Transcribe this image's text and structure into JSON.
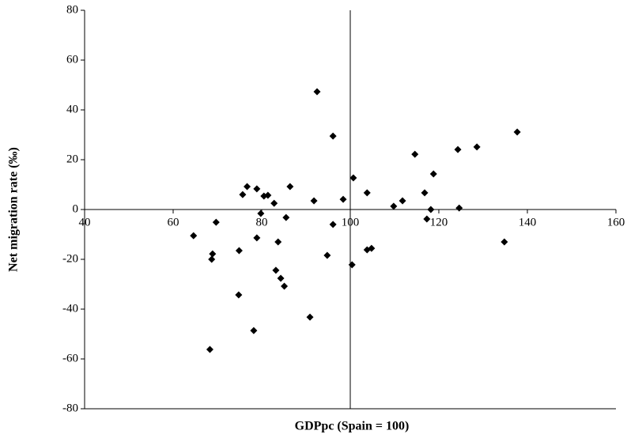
{
  "chart_data": {
    "type": "scatter",
    "x_label": "GDPpc (Spain = 100)",
    "y_label": "Net migration rate (‰)",
    "xlim": [
      40,
      160
    ],
    "xticks": [
      40,
      60,
      80,
      100,
      120,
      140,
      160
    ],
    "ylim": [
      -80,
      80
    ],
    "yticks": [
      -80,
      -60,
      -40,
      -20,
      0,
      20,
      40,
      60,
      80
    ],
    "color": "#000000",
    "x": [
      64.6,
      69.7,
      68.9,
      68.7,
      68.3,
      74.9,
      74.8,
      75.7,
      76.7,
      78.9,
      78.2,
      78.9,
      79.8,
      80.5,
      81.4,
      82.8,
      83.2,
      83.7,
      84.3,
      85.1,
      85.5,
      86.4,
      90.9,
      91.8,
      92.5,
      94.8,
      96.1,
      96.1,
      98.4,
      100.4,
      100.7,
      103.8,
      103.8,
      104.8,
      109.8,
      111.8,
      114.6,
      116.8,
      117.3,
      118.2,
      118.8,
      124.3,
      128.6,
      124.6,
      134.8,
      137.7
    ],
    "y": [
      -10.5,
      -5.1,
      -17.8,
      -20,
      -56.2,
      -16.5,
      -34.3,
      6,
      9.2,
      8.3,
      -48.6,
      -11.4,
      -1.6,
      5.4,
      5.7,
      2.5,
      -24.4,
      -13,
      -27.6,
      -30.8,
      -3.2,
      9.2,
      -43.2,
      3.5,
      47.3,
      -18.4,
      29.5,
      -6,
      4.1,
      -22.2,
      12.7,
      6.7,
      -16.2,
      -15.6,
      1.3,
      3.5,
      22.2,
      6.7,
      -3.8,
      0,
      14.3,
      24.1,
      25.1,
      0.6,
      -13,
      31.1
    ]
  }
}
